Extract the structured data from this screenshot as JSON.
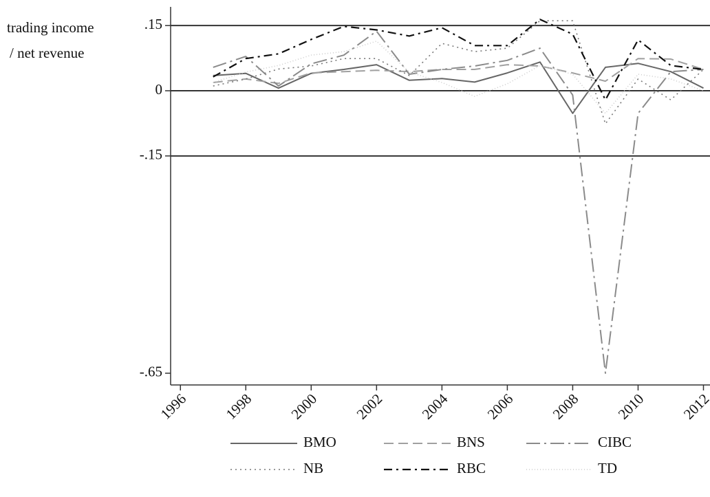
{
  "chart_data": {
    "type": "line",
    "ylabel": [
      "trading income",
      "/ net revenue"
    ],
    "x": [
      1997,
      1998,
      1999,
      2000,
      2001,
      2002,
      2003,
      2004,
      2005,
      2006,
      2007,
      2008,
      2009,
      2010,
      2011,
      2012
    ],
    "series": [
      {
        "name": "BMO",
        "color": "#666666",
        "style": "solid",
        "values": [
          0.035,
          0.04,
          0.006,
          0.04,
          0.049,
          0.06,
          0.024,
          0.028,
          0.02,
          0.041,
          0.066,
          -0.052,
          0.054,
          0.063,
          0.044,
          0.006
        ]
      },
      {
        "name": "BNS",
        "color": "#a0a0a0",
        "style": "dash",
        "values": [
          0.019,
          0.027,
          0.017,
          0.041,
          0.044,
          0.047,
          0.044,
          0.049,
          0.049,
          0.06,
          0.057,
          0.041,
          0.022,
          0.074,
          0.073,
          0.049
        ]
      },
      {
        "name": "CIBC",
        "color": "#8a8a8a",
        "style": "longdash_dot",
        "values": [
          0.054,
          0.079,
          0.011,
          0.062,
          0.082,
          0.137,
          0.038,
          0.049,
          0.057,
          0.07,
          0.098,
          -0.01,
          -0.65,
          -0.052,
          0.044,
          0.049
        ]
      },
      {
        "name": "NB",
        "color": "#777777",
        "style": "dot",
        "values": [
          0.011,
          0.027,
          0.05,
          0.057,
          0.074,
          0.074,
          0.035,
          0.109,
          0.09,
          0.098,
          0.161,
          0.161,
          -0.076,
          0.027,
          -0.021,
          0.049
        ]
      },
      {
        "name": "RBC",
        "color": "#111111",
        "style": "dash_dot",
        "values": [
          0.032,
          0.074,
          0.085,
          0.118,
          0.148,
          0.14,
          0.126,
          0.145,
          0.104,
          0.104,
          0.164,
          0.13,
          -0.021,
          0.117,
          0.058,
          0.049
        ]
      },
      {
        "name": "TD",
        "color": "#cccccc",
        "style": "shortdot",
        "values": [
          0.019,
          0.043,
          0.058,
          0.082,
          0.09,
          0.114,
          0.043,
          0.019,
          -0.013,
          0.016,
          0.058,
          0.038,
          -0.052,
          0.038,
          0.027,
          0
        ]
      }
    ],
    "xlim": [
      1995.7,
      2012.2
    ],
    "xticks": [
      1996,
      1998,
      2000,
      2002,
      2004,
      2006,
      2008,
      2010,
      2012
    ],
    "ylim": [
      -0.677,
      0.193
    ],
    "yticks": [
      {
        "value": -0.65,
        "label": "-.65",
        "grid": false
      },
      {
        "value": -0.15,
        "label": "-.15"
      },
      0,
      {
        "value": 0.15,
        "label": ".15"
      }
    ],
    "grid": true,
    "legend": "bottom"
  }
}
